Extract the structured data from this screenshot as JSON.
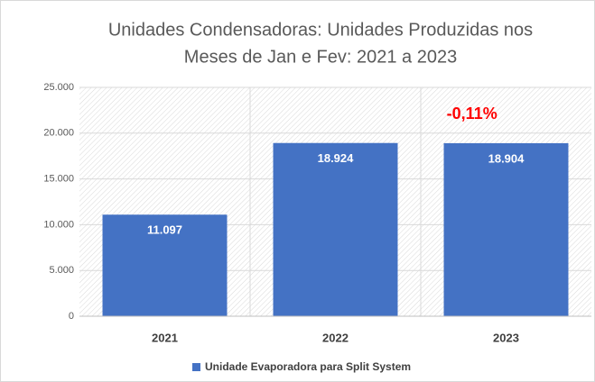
{
  "chart_data": {
    "type": "bar",
    "title": [
      "Unidades Condensadoras: Unidades Produzidas nos",
      "Meses de Jan e Fev: 2021 a 2023"
    ],
    "categories": [
      "2021",
      "2022",
      "2023"
    ],
    "series": [
      {
        "name": "Unidade Evaporadora para Split System",
        "color": "#4472c4",
        "values": [
          11097,
          18924,
          18904
        ],
        "value_labels": [
          "11.097",
          "18.924",
          "18.904"
        ]
      }
    ],
    "ylim": [
      0,
      25000
    ],
    "yticks": [
      0,
      {
        "value": 5000,
        "label": "5.000"
      },
      {
        "value": 10000,
        "label": "10.000"
      },
      {
        "value": 15000,
        "label": "15.000"
      },
      {
        "value": 20000,
        "label": "20.000"
      },
      {
        "value": 25000,
        "label": "25.000"
      }
    ],
    "annotation": "-0,11%",
    "annotation_color": "#ff0000",
    "grid": true,
    "legend": "bottom"
  }
}
